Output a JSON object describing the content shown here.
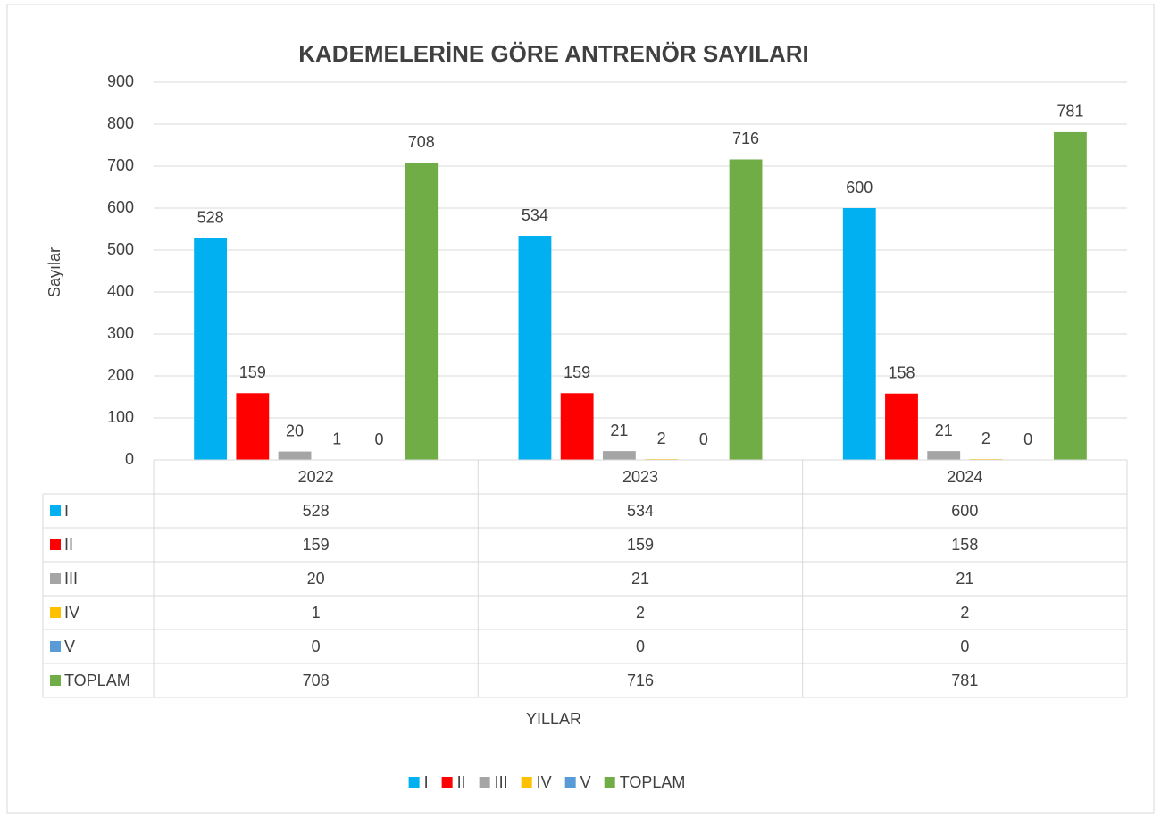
{
  "chart_data": {
    "type": "bar",
    "title": "KADEMELERİNE GÖRE ANTRENÖR SAYILARI",
    "y_label": "Sayılar",
    "x_label": "YILLAR",
    "categories": [
      "2022",
      "2023",
      "2024"
    ],
    "series": [
      {
        "name": "I",
        "color": "#00b0f0",
        "values": [
          528,
          534,
          600
        ]
      },
      {
        "name": "II",
        "color": "#ff0000",
        "values": [
          159,
          159,
          158
        ]
      },
      {
        "name": "III",
        "color": "#a5a5a5",
        "values": [
          20,
          21,
          21
        ]
      },
      {
        "name": "IV",
        "color": "#ffc000",
        "values": [
          1,
          2,
          2
        ]
      },
      {
        "name": "V",
        "color": "#5b9bd5",
        "values": [
          0,
          0,
          0
        ]
      },
      {
        "name": "TOPLAM",
        "color": "#70ad47",
        "values": [
          708,
          716,
          781
        ]
      }
    ],
    "ylim": [
      0,
      900
    ],
    "yticks": [
      0,
      100,
      200,
      300,
      400,
      500,
      600,
      700,
      800,
      900
    ],
    "grid": true,
    "data_table": true,
    "legend": "bottom"
  }
}
